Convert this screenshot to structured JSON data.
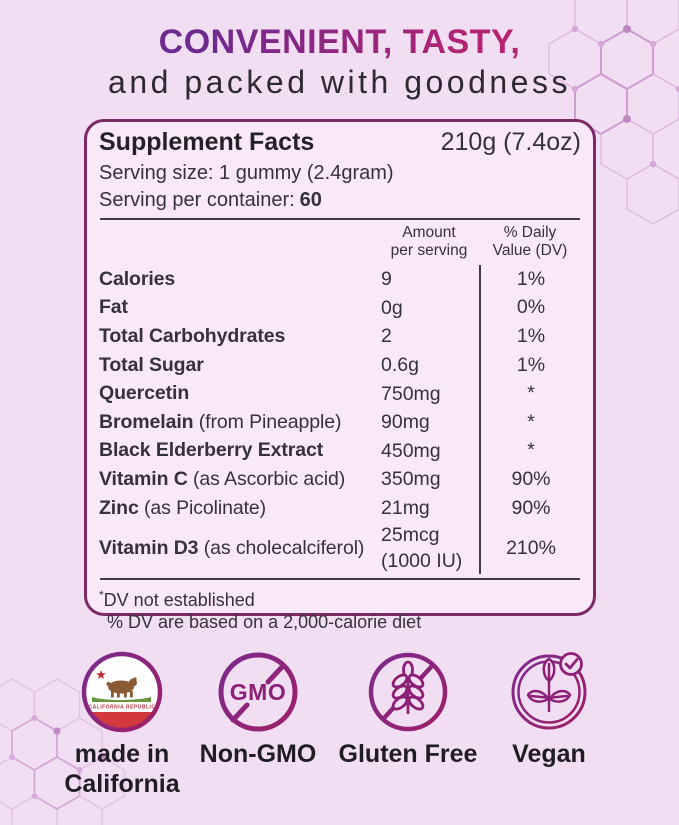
{
  "header": {
    "title_accent": "CONVENIENT, TASTY,",
    "title_sub": "and packed with goodness"
  },
  "panel": {
    "title": "Supplement Facts",
    "net_weight": "210g (7.4oz)",
    "serving_size": "Serving size: 1 gummy (2.4gram)",
    "serving_per_container_label": "Serving per container:",
    "serving_per_container_value": "60",
    "col_amount_line1": "Amount",
    "col_amount_line2": "per serving",
    "col_dv_line1": "% Daily",
    "col_dv_line2": "Value (DV)",
    "rows": [
      {
        "name": "Calories",
        "note": "",
        "amount": "9",
        "dv": "1%"
      },
      {
        "name": "Fat",
        "note": "",
        "amount": "0g",
        "dv": "0%"
      },
      {
        "name": "Total Carbohydrates",
        "note": "",
        "amount": "2",
        "dv": "1%"
      },
      {
        "name": "Total Sugar",
        "note": "",
        "amount": "0.6g",
        "dv": "1%"
      },
      {
        "name": "Quercetin",
        "note": "",
        "amount": "750mg",
        "dv": "*"
      },
      {
        "name": "Bromelain",
        "note": "(from Pineapple)",
        "amount": "90mg",
        "dv": "*"
      },
      {
        "name": "Black Elderberry Extract",
        "note": "",
        "amount": "450mg",
        "dv": "*"
      },
      {
        "name": "Vitamin C",
        "note": "(as Ascorbic acid)",
        "amount": "350mg",
        "dv": "90%"
      },
      {
        "name": "Zinc",
        "note": "(as Picolinate)",
        "amount": "21mg",
        "dv": "90%"
      },
      {
        "name": "Vitamin D3",
        "note": "(as cholecalciferol)",
        "amount": "25mcg",
        "amount2": "(1000 IU)",
        "dv": "210%"
      }
    ],
    "footnote_symbol": "*",
    "footnote1": "DV not established",
    "footnote2": "% DV are based on a 2,000-calorie diet"
  },
  "badges": [
    {
      "label": "made in\nCalifornia",
      "icon": "california-flag-icon"
    },
    {
      "label": "Non-GMO",
      "icon": "no-gmo-icon"
    },
    {
      "label": "Gluten Free",
      "icon": "no-wheat-icon"
    },
    {
      "label": "Vegan",
      "icon": "vegan-leaf-check-icon"
    }
  ],
  "badge_icon_text": {
    "gmo": "GMO",
    "california_flag_motto": "CALIFORNIA REPUBLIC"
  },
  "colors": {
    "bg": "#F2DEF3",
    "card-bg": "#F8E8F9",
    "card-border": "#7B2A66",
    "rule": "#433C46",
    "ink": "#36313C",
    "heading": "#2E2933",
    "grad1": "#6D2A8F",
    "grad2": "#B52371",
    "badge-stroke-1": "#7C2B8E",
    "badge-stroke-2": "#9E1F67",
    "label": "#1F1C24"
  }
}
